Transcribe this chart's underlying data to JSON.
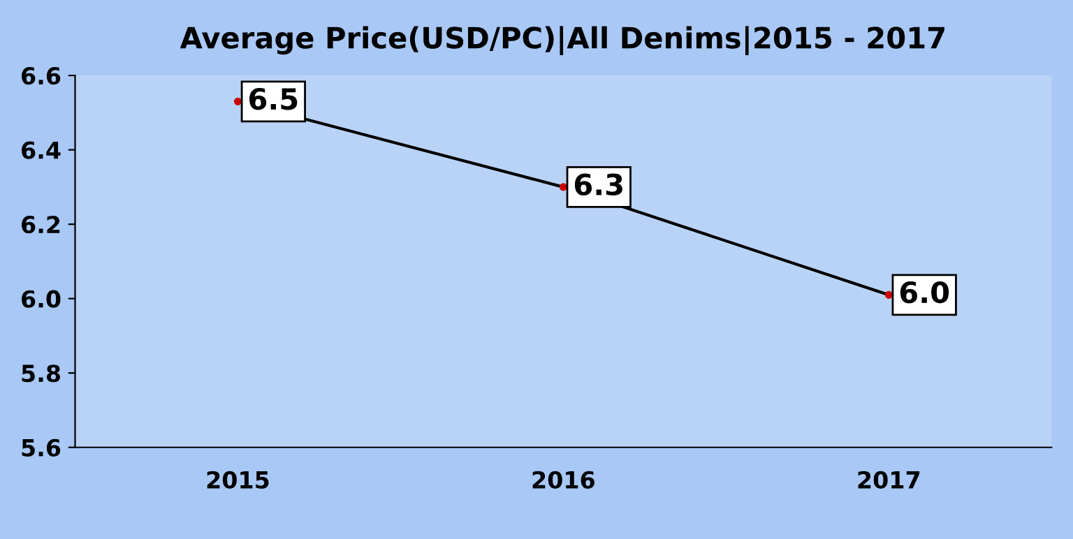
{
  "chart_data": {
    "type": "line",
    "title": "Average Price(USD/PC)|All Denims|2015 - 2017",
    "categories": [
      "2015",
      "2016",
      "2017"
    ],
    "series": [
      {
        "color": "#000000",
        "values": [
          6.53,
          6.3,
          6.01
        ],
        "value_labels": [
          "6.5",
          "6.3",
          "6.0"
        ]
      }
    ],
    "ylim": [
      5.6,
      6.6
    ],
    "yticks": [
      {
        "value": 5.6,
        "label": "5.6"
      },
      {
        "value": 5.8,
        "label": "5.8"
      },
      {
        "value": 6.0,
        "label": "6.0"
      },
      {
        "value": 6.2,
        "label": "6.2"
      },
      {
        "value": 6.4,
        "label": "6.4"
      },
      {
        "value": 6.6,
        "label": "6.6"
      }
    ],
    "grid": false,
    "legend": false,
    "marker": "circle",
    "line_style": "solid"
  }
}
